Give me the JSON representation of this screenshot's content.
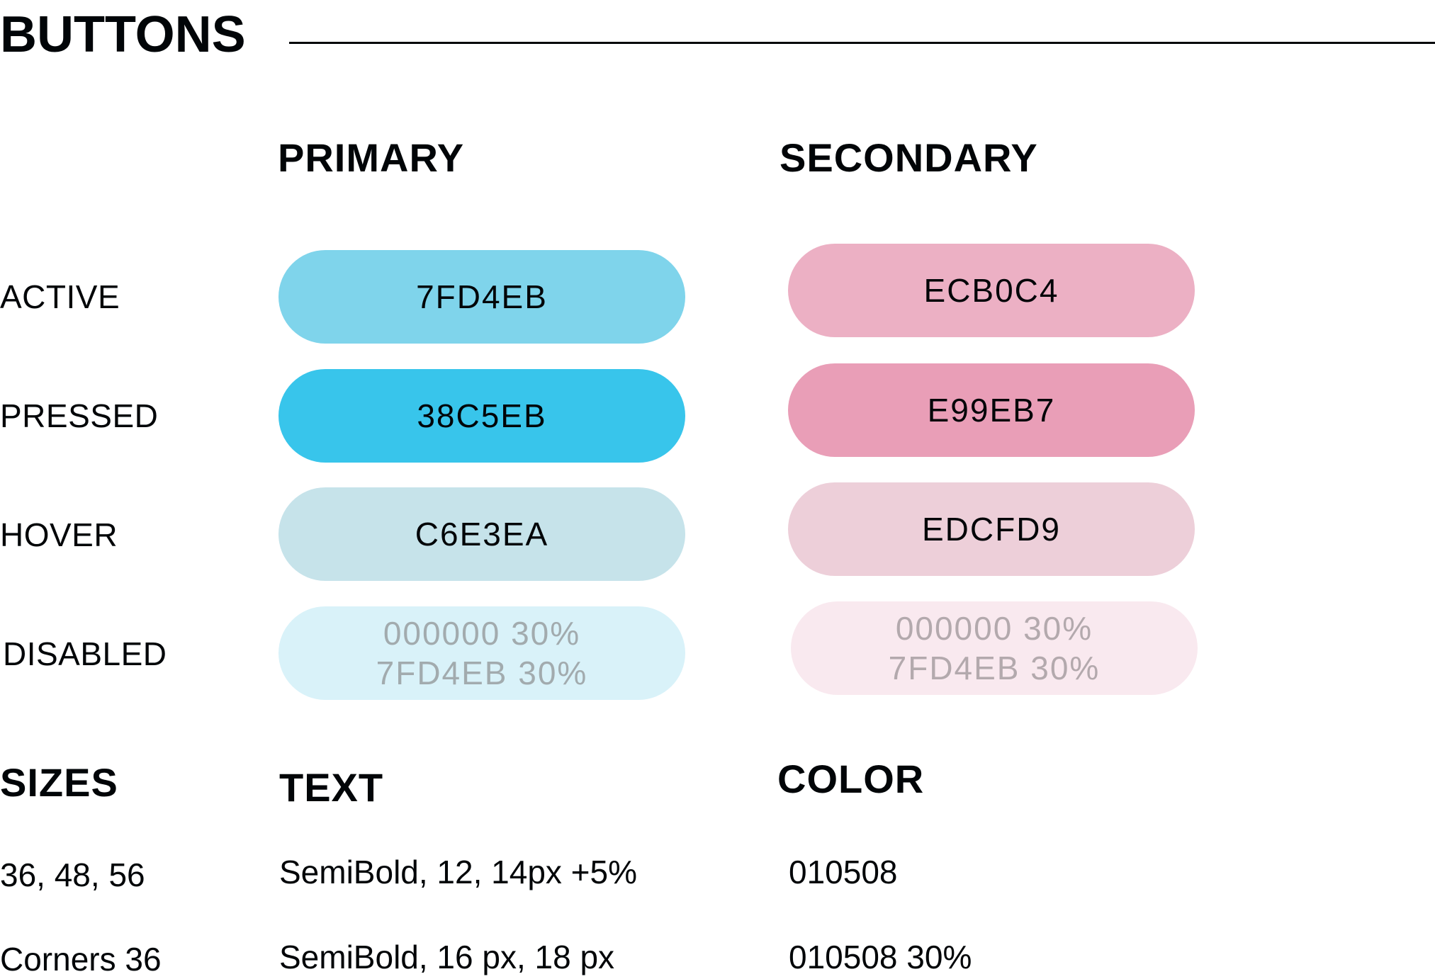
{
  "title": "BUTTONS",
  "columns": {
    "primary": "PRIMARY",
    "secondary": "SECONDARY"
  },
  "states": [
    "ACTIVE",
    "PRESSED",
    "HOVER",
    "DISABLED"
  ],
  "primary": {
    "active": {
      "label": "7FD4EB",
      "color": "#7FD4EB"
    },
    "pressed": {
      "label": "38C5EB",
      "color": "#38C5EB"
    },
    "hover": {
      "label": "C6E3EA",
      "color": "#C6E3EA"
    },
    "disabled": {
      "line1": "000000 30%",
      "line2": "7FD4EB 30%",
      "color": "#D9F2F9",
      "text_color": "#A2ABAE"
    }
  },
  "secondary": {
    "active": {
      "label": "ECB0C4",
      "color": "#ECB0C4"
    },
    "pressed": {
      "label": "E99EB7",
      "color": "#E99EB7"
    },
    "hover": {
      "label": "EDCFD9",
      "color": "#EDCFD9"
    },
    "disabled": {
      "line1": "000000 30%",
      "line2": "7FD4EB 30%",
      "color": "#F9E9EF",
      "text_color": "#B3A9AD"
    }
  },
  "specs": {
    "sizes": {
      "heading": "SIZES",
      "line1": "36, 48, 56",
      "line2": "Corners 36"
    },
    "text": {
      "heading": "TEXT",
      "line1": "SemiBold, 12, 14px +5%",
      "line2": "SemiBold, 16 px, 18 px"
    },
    "color": {
      "heading": "COLOR",
      "line1": "010508",
      "line2": "010508 30%"
    }
  }
}
